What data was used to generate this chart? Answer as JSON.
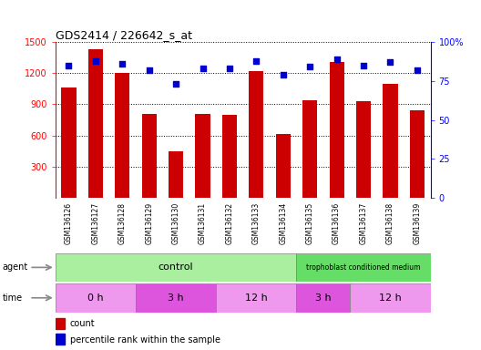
{
  "title": "GDS2414 / 226642_s_at",
  "samples": [
    "GSM136126",
    "GSM136127",
    "GSM136128",
    "GSM136129",
    "GSM136130",
    "GSM136131",
    "GSM136132",
    "GSM136133",
    "GSM136134",
    "GSM136135",
    "GSM136136",
    "GSM136137",
    "GSM136138",
    "GSM136139"
  ],
  "counts": [
    1060,
    1430,
    1200,
    810,
    450,
    810,
    800,
    1220,
    610,
    940,
    1310,
    930,
    1100,
    840
  ],
  "percentile_ranks": [
    85,
    88,
    86,
    82,
    73,
    83,
    83,
    88,
    79,
    84,
    89,
    85,
    87,
    82
  ],
  "ylim_left": [
    0,
    1500
  ],
  "ylim_right": [
    0,
    100
  ],
  "yticks_left": [
    300,
    600,
    900,
    1200,
    1500
  ],
  "yticks_right": [
    0,
    25,
    50,
    75,
    100
  ],
  "bar_color": "#cc0000",
  "dot_color": "#0000cc",
  "control_color": "#99ee88",
  "tcm_color": "#66dd66",
  "time_color_light": "#ee88ee",
  "time_color_dark": "#dd44dd",
  "tick_area_color": "#cccccc",
  "legend_count_label": "count",
  "legend_pct_label": "percentile rank within the sample",
  "agent_label": "agent",
  "time_label": "time"
}
